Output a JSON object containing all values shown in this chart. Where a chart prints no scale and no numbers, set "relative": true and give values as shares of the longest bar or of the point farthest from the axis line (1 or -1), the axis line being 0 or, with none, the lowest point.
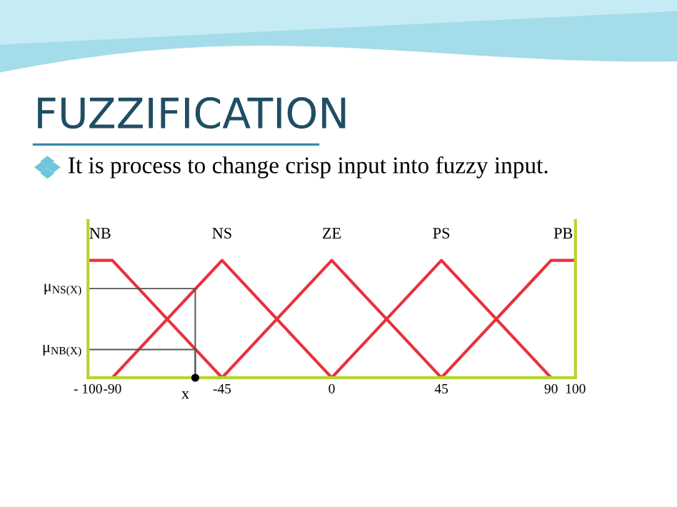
{
  "chart_data": {
    "type": "line",
    "title": "FUZZIFICATION",
    "subtitle": "It is process to change crisp input into fuzzy input.",
    "relative": true,
    "xlim": [
      -100,
      100
    ],
    "xticks": [
      {
        "value": -100,
        "label": "- 100"
      },
      -90,
      -45,
      0,
      45,
      90,
      100
    ],
    "series": [
      {
        "name": "NB",
        "color": "#e8323c",
        "x": [
          -100,
          -90,
          -45
        ],
        "values": [
          1,
          1,
          0
        ]
      },
      {
        "name": "NS",
        "color": "#e8323c",
        "x": [
          -90,
          -45,
          0
        ],
        "values": [
          0,
          1,
          0
        ]
      },
      {
        "name": "ZE",
        "color": "#e8323c",
        "x": [
          -45,
          0,
          45
        ],
        "values": [
          0,
          1,
          0
        ]
      },
      {
        "name": "PS",
        "color": "#e8323c",
        "x": [
          0,
          45,
          90
        ],
        "values": [
          0,
          1,
          0
        ]
      },
      {
        "name": "PB",
        "color": "#e8323c",
        "x": [
          45,
          90,
          100
        ],
        "values": [
          0,
          1,
          1
        ]
      }
    ],
    "annotations": [
      {
        "text": "x",
        "x": -56,
        "y": 0
      }
    ],
    "ref_lines": [
      {
        "axis": "y",
        "value": 0.76,
        "label": "μ$_{NS(X)}$",
        "color": "#555555"
      },
      {
        "axis": "y",
        "value": 0.24,
        "label": "μ$_{NB(X)}$",
        "color": "#555555"
      }
    ],
    "grid": false,
    "legend": false,
    "marker": "none",
    "line_style": "solid"
  }
}
